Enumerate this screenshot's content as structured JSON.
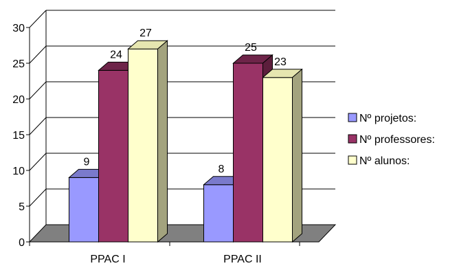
{
  "chart_data": {
    "type": "bar",
    "style": "3d-clustered-column",
    "title": "",
    "xlabel": "",
    "ylabel": "",
    "categories": [
      "PPAC I",
      "PPAC II"
    ],
    "series": [
      {
        "name": "Nº projetos:",
        "values": [
          9,
          8
        ],
        "color": "#9999FF",
        "side_color": "#5E5E9E",
        "top_color": "#7A7ACC"
      },
      {
        "name": "Nº professores:",
        "values": [
          24,
          25
        ],
        "color": "#993366",
        "side_color": "#5C1E3C",
        "top_color": "#6E2449"
      },
      {
        "name": "Nº alunos:",
        "values": [
          27,
          23
        ],
        "color": "#FFFFCC",
        "side_color": "#A3A37E",
        "top_color": "#E6E6B0"
      }
    ],
    "y_ticks": [
      0,
      5,
      10,
      15,
      20,
      25,
      30
    ],
    "ylim": [
      0,
      30
    ],
    "grid": true,
    "legend_position": "right",
    "floor_color": "#808080"
  }
}
